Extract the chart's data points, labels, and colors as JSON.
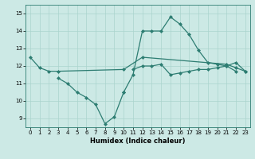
{
  "xlabel": "Humidex (Indice chaleur)",
  "xlim": [
    -0.5,
    23.5
  ],
  "ylim": [
    8.5,
    15.5
  ],
  "yticks": [
    9,
    10,
    11,
    12,
    13,
    14,
    15
  ],
  "xticks": [
    0,
    1,
    2,
    3,
    4,
    5,
    6,
    7,
    8,
    9,
    10,
    11,
    12,
    13,
    14,
    15,
    16,
    17,
    18,
    19,
    20,
    21,
    22,
    23
  ],
  "bg_color": "#cce9e5",
  "grid_color": "#aad4ce",
  "line_color": "#2d7d72",
  "series": [
    {
      "x": [
        0,
        1,
        2,
        3,
        10,
        12,
        21,
        22,
        23
      ],
      "y": [
        12.5,
        11.9,
        11.7,
        11.7,
        11.8,
        12.5,
        12.1,
        11.9,
        11.7
      ],
      "marker": "D",
      "markersize": 2.0,
      "linewidth": 0.9
    },
    {
      "x": [
        3,
        4,
        5,
        6,
        7,
        8,
        9,
        10
      ],
      "y": [
        11.3,
        11.0,
        10.5,
        10.2,
        9.8,
        8.7,
        9.1,
        10.5
      ],
      "marker": "D",
      "markersize": 2.0,
      "linewidth": 0.9
    },
    {
      "x": [
        10,
        11,
        12,
        13,
        14,
        15,
        16,
        17,
        18,
        19,
        20,
        21,
        22
      ],
      "y": [
        10.5,
        11.5,
        14.0,
        14.0,
        14.0,
        14.8,
        14.4,
        13.8,
        12.9,
        12.2,
        12.1,
        12.0,
        11.7
      ],
      "marker": "D",
      "markersize": 2.0,
      "linewidth": 0.9
    },
    {
      "x": [
        11,
        12,
        13,
        14,
        15,
        16,
        17,
        18,
        19,
        20,
        21,
        22,
        23
      ],
      "y": [
        11.8,
        12.0,
        12.0,
        12.1,
        11.5,
        11.6,
        11.7,
        11.8,
        11.8,
        11.9,
        12.0,
        12.2,
        11.7
      ],
      "marker": "D",
      "markersize": 2.0,
      "linewidth": 0.9
    }
  ]
}
